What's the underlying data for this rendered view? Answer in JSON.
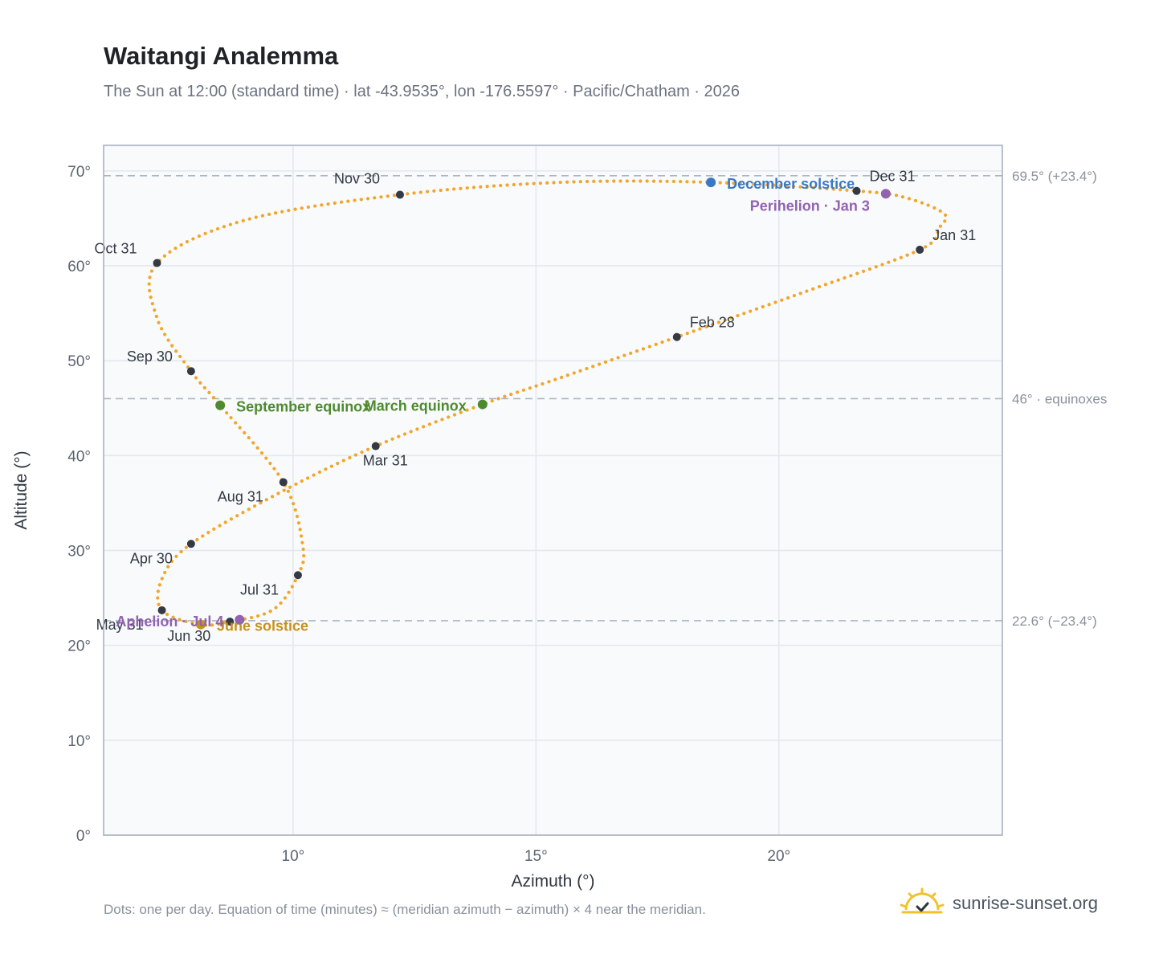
{
  "header": {
    "title": "Waitangi Analemma",
    "subtitle": "The Sun at 12:00 (standard time) · lat -43.9535°, lon -176.5597° · Pacific/Chatham · 2026"
  },
  "footer": {
    "note": "Dots: one per day. Equation of time (minutes) ≈ (meridian azimuth − azimuth) × 4 near the meridian.",
    "brand": "sunrise-sunset.org"
  },
  "colors": {
    "path": "#f2a62b",
    "month_marker": "#333a44",
    "solstice_december": "#3a78c3",
    "solstice_june": "#c8921a",
    "equinox": "#4f8a2e",
    "apsis": "#9163b0",
    "plot_bg": "#f8fafc",
    "grid": "#e3e8ee",
    "ref_line": "#aab6c3"
  },
  "chart_data": {
    "type": "scatter",
    "xlabel": "Azimuth (°)",
    "ylabel": "Altitude (°)",
    "xlim": [
      6.1,
      24.6
    ],
    "ylim": [
      0,
      72.7
    ],
    "x_ticks": [
      10,
      15,
      20
    ],
    "x_tick_labels": [
      "10°",
      "15°",
      "20°"
    ],
    "y_ticks": [
      0,
      10,
      20,
      30,
      40,
      50,
      60,
      70
    ],
    "y_tick_labels": [
      "0°",
      "10°",
      "20°",
      "30°",
      "40°",
      "50°",
      "60°",
      "70°"
    ],
    "grid": true,
    "reference_lines": [
      {
        "y": 69.5,
        "label": "69.5° (+23.4°)"
      },
      {
        "y": 46.0,
        "label": "46° · equinoxes"
      },
      {
        "y": 22.6,
        "label": "22.6° (−23.4°)"
      }
    ],
    "month_markers": [
      {
        "label": "Jan 31",
        "x": 22.9,
        "y": 61.7
      },
      {
        "label": "Feb 28",
        "x": 17.9,
        "y": 52.5
      },
      {
        "label": "Mar 31",
        "x": 11.7,
        "y": 41.0
      },
      {
        "label": "Apr 30",
        "x": 7.9,
        "y": 30.7
      },
      {
        "label": "May 31",
        "x": 7.3,
        "y": 23.7
      },
      {
        "label": "Jun 30",
        "x": 8.7,
        "y": 22.5
      },
      {
        "label": "Jul 31",
        "x": 10.1,
        "y": 27.4
      },
      {
        "label": "Aug 31",
        "x": 9.8,
        "y": 37.2
      },
      {
        "label": "Sep 30",
        "x": 7.9,
        "y": 48.9
      },
      {
        "label": "Oct 31",
        "x": 7.2,
        "y": 60.3
      },
      {
        "label": "Nov 30",
        "x": 12.2,
        "y": 67.5
      },
      {
        "label": "Dec 31",
        "x": 21.6,
        "y": 67.9
      }
    ],
    "events": [
      {
        "label": "December solstice",
        "x": 18.6,
        "y": 68.8,
        "kind": "solstice_december"
      },
      {
        "label": "Perihelion · Jan 3",
        "x": 22.2,
        "y": 67.6,
        "kind": "apsis"
      },
      {
        "label": "March equinox",
        "x": 13.9,
        "y": 45.4,
        "kind": "equinox"
      },
      {
        "label": "September equinox",
        "x": 8.5,
        "y": 45.3,
        "kind": "equinox"
      },
      {
        "label": "June solstice",
        "x": 8.1,
        "y": 22.2,
        "kind": "solstice_june"
      },
      {
        "label": "Aphelion · Jul 4",
        "x": 8.9,
        "y": 22.7,
        "kind": "apsis"
      }
    ],
    "path_control_points": [
      {
        "x": 21.6,
        "y": 67.9
      },
      {
        "x": 22.6,
        "y": 67.2
      },
      {
        "x": 23.4,
        "y": 65.5
      },
      {
        "x": 23.3,
        "y": 64.0
      },
      {
        "x": 22.9,
        "y": 61.7
      },
      {
        "x": 20.5,
        "y": 57.2
      },
      {
        "x": 17.9,
        "y": 52.5
      },
      {
        "x": 15.5,
        "y": 48.2
      },
      {
        "x": 13.9,
        "y": 45.4
      },
      {
        "x": 11.7,
        "y": 41.0
      },
      {
        "x": 9.8,
        "y": 36.3
      },
      {
        "x": 7.9,
        "y": 30.7
      },
      {
        "x": 7.3,
        "y": 27.0
      },
      {
        "x": 7.3,
        "y": 23.7
      },
      {
        "x": 8.1,
        "y": 22.2
      },
      {
        "x": 8.7,
        "y": 22.5
      },
      {
        "x": 9.6,
        "y": 23.8
      },
      {
        "x": 10.1,
        "y": 27.4
      },
      {
        "x": 10.2,
        "y": 30.5
      },
      {
        "x": 9.8,
        "y": 37.2
      },
      {
        "x": 8.5,
        "y": 45.3
      },
      {
        "x": 7.9,
        "y": 48.9
      },
      {
        "x": 7.2,
        "y": 54.5
      },
      {
        "x": 7.2,
        "y": 60.3
      },
      {
        "x": 9.0,
        "y": 64.8
      },
      {
        "x": 12.2,
        "y": 67.5
      },
      {
        "x": 15.5,
        "y": 68.8
      },
      {
        "x": 18.6,
        "y": 68.8
      },
      {
        "x": 21.6,
        "y": 67.9
      }
    ]
  }
}
